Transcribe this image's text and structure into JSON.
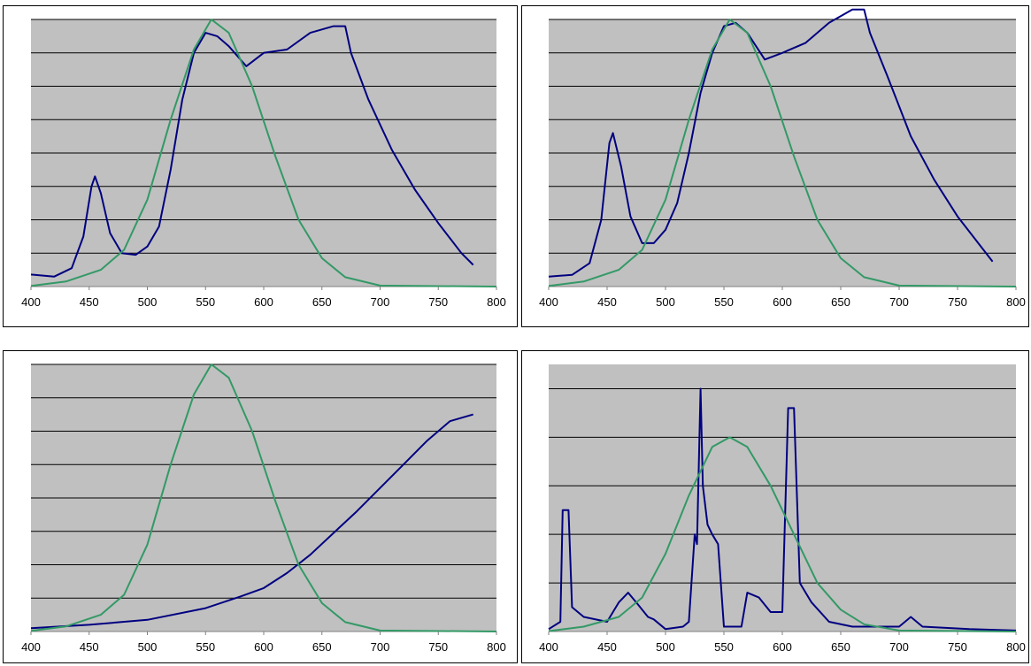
{
  "colors": {
    "plot_bg": "#c0c0c0",
    "gridline": "#000000",
    "spectrum": "#000080",
    "eye_response": "#339966"
  },
  "chart_data": [
    {
      "type": "line",
      "xlim": [
        400,
        800
      ],
      "ylim": [
        0,
        8
      ],
      "grid": true,
      "x_ticks": [
        "400",
        "450",
        "500",
        "550",
        "600",
        "650",
        "700",
        "750",
        "800"
      ],
      "series": [
        {
          "role": "spectrum",
          "points": [
            [
              400,
              0.36
            ],
            [
              420,
              0.3
            ],
            [
              435,
              0.55
            ],
            [
              445,
              1.5
            ],
            [
              452,
              3.0
            ],
            [
              455,
              3.3
            ],
            [
              460,
              2.8
            ],
            [
              468,
              1.6
            ],
            [
              478,
              1.0
            ],
            [
              490,
              0.95
            ],
            [
              500,
              1.2
            ],
            [
              510,
              1.8
            ],
            [
              520,
              3.5
            ],
            [
              530,
              5.6
            ],
            [
              540,
              7.0
            ],
            [
              550,
              7.6
            ],
            [
              560,
              7.5
            ],
            [
              570,
              7.2
            ],
            [
              585,
              6.6
            ],
            [
              600,
              7.0
            ],
            [
              620,
              7.1
            ],
            [
              640,
              7.6
            ],
            [
              660,
              7.8
            ],
            [
              670,
              7.8
            ],
            [
              675,
              7.0
            ],
            [
              690,
              5.6
            ],
            [
              710,
              4.1
            ],
            [
              730,
              2.9
            ],
            [
              750,
              1.9
            ],
            [
              770,
              1.0
            ],
            [
              780,
              0.65
            ]
          ]
        },
        {
          "role": "eye_response",
          "points": [
            [
              400,
              0.02
            ],
            [
              430,
              0.15
            ],
            [
              460,
              0.5
            ],
            [
              480,
              1.1
            ],
            [
              500,
              2.6
            ],
            [
              520,
              5.0
            ],
            [
              540,
              7.1
            ],
            [
              555,
              8.0
            ],
            [
              570,
              7.6
            ],
            [
              590,
              6.0
            ],
            [
              610,
              3.9
            ],
            [
              630,
              2.0
            ],
            [
              650,
              0.85
            ],
            [
              670,
              0.28
            ],
            [
              700,
              0.03
            ],
            [
              800,
              0
            ]
          ]
        }
      ]
    },
    {
      "type": "line",
      "xlim": [
        400,
        800
      ],
      "ylim": [
        0,
        8
      ],
      "grid": true,
      "x_ticks": [
        "400",
        "450",
        "500",
        "550",
        "600",
        "650",
        "700",
        "750",
        "800"
      ],
      "series": [
        {
          "role": "spectrum",
          "points": [
            [
              400,
              0.3
            ],
            [
              420,
              0.35
            ],
            [
              435,
              0.7
            ],
            [
              445,
              2.0
            ],
            [
              452,
              4.3
            ],
            [
              455,
              4.6
            ],
            [
              462,
              3.6
            ],
            [
              470,
              2.1
            ],
            [
              480,
              1.3
            ],
            [
              490,
              1.3
            ],
            [
              500,
              1.7
            ],
            [
              510,
              2.5
            ],
            [
              520,
              4.0
            ],
            [
              530,
              5.8
            ],
            [
              540,
              7.0
            ],
            [
              550,
              7.8
            ],
            [
              560,
              7.9
            ],
            [
              570,
              7.6
            ],
            [
              585,
              6.8
            ],
            [
              600,
              7.0
            ],
            [
              620,
              7.3
            ],
            [
              640,
              7.9
            ],
            [
              660,
              8.3
            ],
            [
              670,
              8.3
            ],
            [
              675,
              7.6
            ],
            [
              690,
              6.3
            ],
            [
              710,
              4.5
            ],
            [
              730,
              3.2
            ],
            [
              750,
              2.1
            ],
            [
              770,
              1.2
            ],
            [
              780,
              0.75
            ]
          ]
        },
        {
          "role": "eye_response",
          "points": [
            [
              400,
              0.02
            ],
            [
              430,
              0.15
            ],
            [
              460,
              0.5
            ],
            [
              480,
              1.1
            ],
            [
              500,
              2.6
            ],
            [
              520,
              5.0
            ],
            [
              540,
              7.1
            ],
            [
              555,
              8.0
            ],
            [
              570,
              7.6
            ],
            [
              590,
              6.0
            ],
            [
              610,
              3.9
            ],
            [
              630,
              2.0
            ],
            [
              650,
              0.85
            ],
            [
              670,
              0.28
            ],
            [
              700,
              0.03
            ],
            [
              800,
              0
            ]
          ]
        }
      ]
    },
    {
      "type": "line",
      "xlim": [
        400,
        800
      ],
      "ylim": [
        0,
        8
      ],
      "grid": true,
      "x_ticks": [
        "400",
        "450",
        "500",
        "550",
        "600",
        "650",
        "700",
        "750",
        "800"
      ],
      "series": [
        {
          "role": "spectrum",
          "points": [
            [
              400,
              0.1
            ],
            [
              450,
              0.2
            ],
            [
              500,
              0.35
            ],
            [
              550,
              0.7
            ],
            [
              580,
              1.05
            ],
            [
              600,
              1.3
            ],
            [
              620,
              1.75
            ],
            [
              640,
              2.3
            ],
            [
              660,
              2.95
            ],
            [
              680,
              3.6
            ],
            [
              700,
              4.3
            ],
            [
              720,
              5.0
            ],
            [
              740,
              5.7
            ],
            [
              760,
              6.3
            ],
            [
              780,
              6.5
            ]
          ]
        },
        {
          "role": "eye_response",
          "points": [
            [
              400,
              0.02
            ],
            [
              430,
              0.15
            ],
            [
              460,
              0.5
            ],
            [
              480,
              1.1
            ],
            [
              500,
              2.6
            ],
            [
              520,
              5.0
            ],
            [
              540,
              7.1
            ],
            [
              555,
              8.0
            ],
            [
              570,
              7.6
            ],
            [
              590,
              6.0
            ],
            [
              610,
              3.9
            ],
            [
              630,
              2.0
            ],
            [
              650,
              0.85
            ],
            [
              670,
              0.28
            ],
            [
              700,
              0.03
            ],
            [
              800,
              0
            ]
          ]
        }
      ]
    },
    {
      "type": "line",
      "xlim": [
        400,
        800
      ],
      "ylim": [
        0,
        5.5
      ],
      "grid": true,
      "x_ticks": [
        "400",
        "450",
        "500",
        "550",
        "600",
        "650",
        "700",
        "750",
        "800"
      ],
      "series": [
        {
          "role": "spectrum",
          "points": [
            [
              400,
              0.05
            ],
            [
              410,
              0.2
            ],
            [
              412,
              2.5
            ],
            [
              417,
              2.5
            ],
            [
              420,
              0.5
            ],
            [
              430,
              0.3
            ],
            [
              450,
              0.2
            ],
            [
              460,
              0.6
            ],
            [
              468,
              0.8
            ],
            [
              475,
              0.6
            ],
            [
              485,
              0.3
            ],
            [
              490,
              0.25
            ],
            [
              500,
              0.05
            ],
            [
              515,
              0.1
            ],
            [
              520,
              0.2
            ],
            [
              525,
              2.0
            ],
            [
              527,
              1.8
            ],
            [
              530,
              5.0
            ],
            [
              532,
              3.0
            ],
            [
              536,
              2.2
            ],
            [
              540,
              2.0
            ],
            [
              545,
              1.8
            ],
            [
              550,
              0.1
            ],
            [
              565,
              0.1
            ],
            [
              570,
              0.8
            ],
            [
              580,
              0.7
            ],
            [
              590,
              0.4
            ],
            [
              600,
              0.4
            ],
            [
              605,
              4.6
            ],
            [
              610,
              4.6
            ],
            [
              615,
              1.0
            ],
            [
              625,
              0.6
            ],
            [
              640,
              0.2
            ],
            [
              660,
              0.1
            ],
            [
              700,
              0.1
            ],
            [
              710,
              0.3
            ],
            [
              720,
              0.1
            ],
            [
              760,
              0.05
            ],
            [
              800,
              0.02
            ]
          ]
        },
        {
          "role": "eye_response",
          "points": [
            [
              400,
              0.01
            ],
            [
              430,
              0.1
            ],
            [
              460,
              0.3
            ],
            [
              480,
              0.7
            ],
            [
              500,
              1.6
            ],
            [
              520,
              2.8
            ],
            [
              540,
              3.8
            ],
            [
              555,
              4.0
            ],
            [
              570,
              3.8
            ],
            [
              590,
              3.0
            ],
            [
              610,
              2.0
            ],
            [
              630,
              1.0
            ],
            [
              650,
              0.45
            ],
            [
              670,
              0.15
            ],
            [
              700,
              0.02
            ],
            [
              800,
              0
            ]
          ]
        }
      ]
    }
  ]
}
